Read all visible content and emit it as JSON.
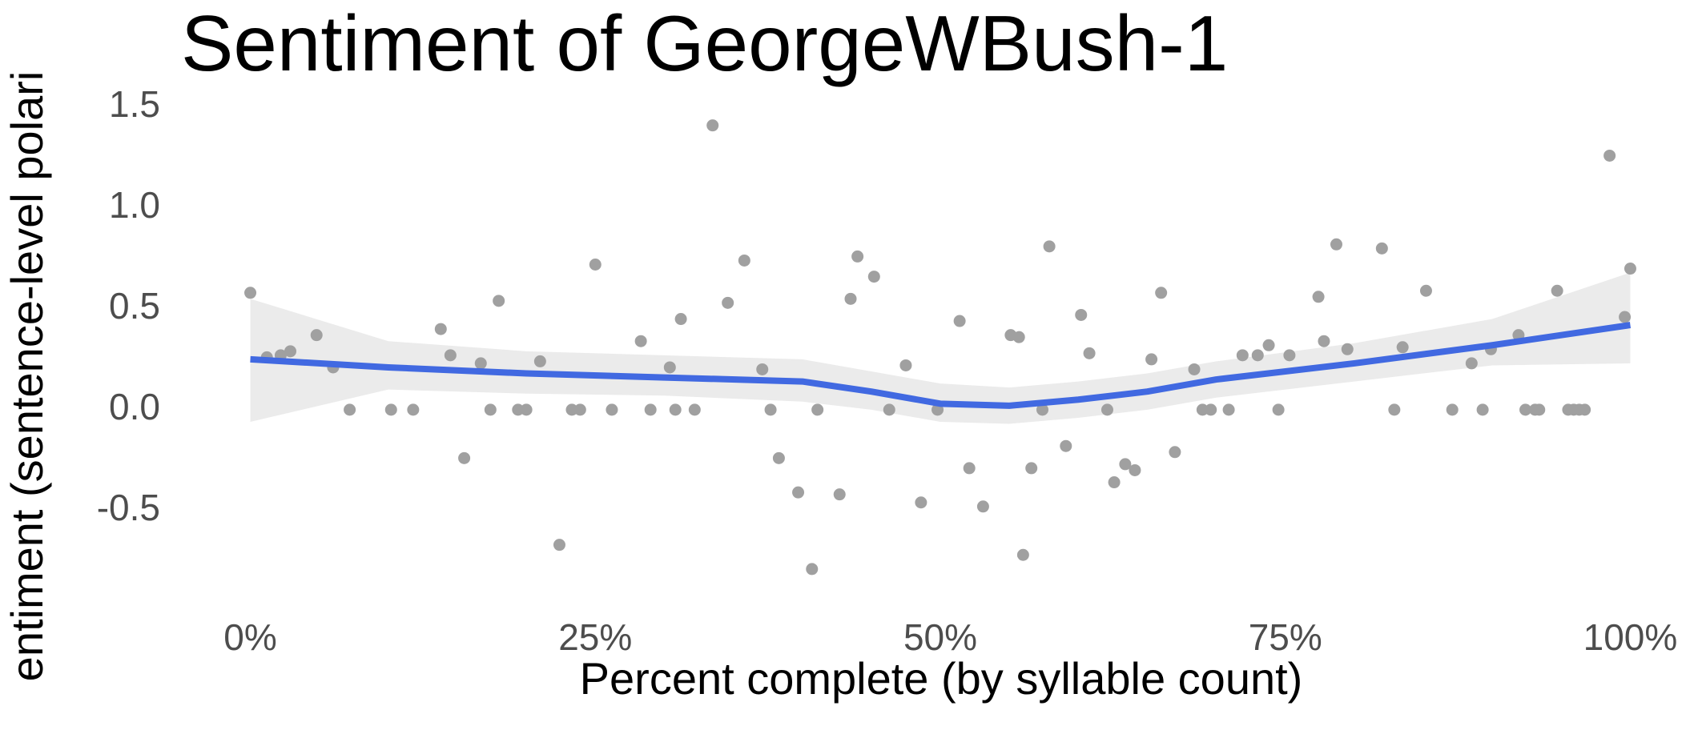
{
  "chart_data": {
    "type": "scatter",
    "title": "Sentiment of GeorgeWBush-1",
    "x_label": "Percent complete (by syllable count)",
    "y_label": "entiment (sentence-level polari",
    "xlim": [
      -4.5,
      104.5
    ],
    "ylim": [
      -0.85,
      1.5
    ],
    "xticks": [
      {
        "value": 0,
        "label": "0%"
      },
      {
        "value": 25,
        "label": "25%"
      },
      {
        "value": 50,
        "label": "50%"
      },
      {
        "value": 75,
        "label": "75%"
      },
      {
        "value": 100,
        "label": "100%"
      }
    ],
    "yticks": [
      -0.5,
      {
        "value": 0,
        "label": "0.0"
      },
      0.5,
      {
        "value": 1,
        "label": "1.0"
      },
      1.5
    ],
    "grid": false,
    "points": {
      "color": "#a0a0a0",
      "x": [
        0,
        1.2,
        2.2,
        2.9,
        4.8,
        6.0,
        7.2,
        10.2,
        11.8,
        13.8,
        14.5,
        15.5,
        16.7,
        17.4,
        18.0,
        19.4,
        20.0,
        21.0,
        22.4,
        23.3,
        23.9,
        25.0,
        26.2,
        28.3,
        29.0,
        30.4,
        30.8,
        31.2,
        32.2,
        33.5,
        34.6,
        35.8,
        37.1,
        37.7,
        38.3,
        39.7,
        40.7,
        41.1,
        42.7,
        43.5,
        44.0,
        45.2,
        46.3,
        47.5,
        48.6,
        49.8,
        51.4,
        52.1,
        53.1,
        55.1,
        55.7,
        56.0,
        56.6,
        57.4,
        57.9,
        59.1,
        60.2,
        60.8,
        62.1,
        62.6,
        63.4,
        64.1,
        65.3,
        66.0,
        67.0,
        68.4,
        69.0,
        69.6,
        70.9,
        71.9,
        73.0,
        73.8,
        74.5,
        75.3,
        77.4,
        77.8,
        78.7,
        79.5,
        82.0,
        82.9,
        83.5,
        85.2,
        87.1,
        88.5,
        89.3,
        89.9,
        91.9,
        92.4,
        93.1,
        93.4,
        94.7,
        95.5,
        95.9,
        96.3,
        96.7,
        98.5,
        99.6,
        100
      ],
      "values": [
        0.58,
        0.26,
        0.27,
        0.29,
        0.37,
        0.21,
        0,
        0,
        0,
        0.4,
        0.27,
        -0.24,
        0.23,
        0,
        0.54,
        0,
        0,
        0.24,
        -0.67,
        0,
        0,
        0.72,
        0,
        0.34,
        0,
        0.21,
        0,
        0.45,
        0,
        1.41,
        0.53,
        0.74,
        0.2,
        0,
        -0.24,
        -0.41,
        -0.79,
        0,
        -0.42,
        0.55,
        0.76,
        0.66,
        0,
        0.22,
        -0.46,
        0,
        0.44,
        -0.29,
        -0.48,
        0.37,
        0.36,
        -0.72,
        -0.29,
        0,
        0.81,
        -0.18,
        0.47,
        0.28,
        0,
        -0.36,
        -0.27,
        -0.3,
        0.25,
        0.58,
        -0.21,
        0.2,
        0,
        0,
        0,
        0.27,
        0.27,
        0.32,
        0,
        0.27,
        0.56,
        0.34,
        0.82,
        0.3,
        0.8,
        0,
        0.31,
        0.59,
        0,
        0.23,
        0,
        0.3,
        0.37,
        0,
        0,
        0,
        0.59,
        0,
        0,
        0,
        0,
        1.26,
        0.46,
        0.7
      ]
    },
    "smooth": {
      "color": "#4169e1",
      "band_color": "#ebebeb",
      "x": [
        0,
        10,
        20,
        30,
        40,
        45,
        50,
        55,
        60,
        65,
        70,
        80,
        90,
        100
      ],
      "values": [
        0.25,
        0.21,
        0.18,
        0.16,
        0.14,
        0.09,
        0.03,
        0.02,
        0.05,
        0.09,
        0.15,
        0.23,
        0.32,
        0.42
      ],
      "lower": [
        -0.06,
        0.1,
        0.08,
        0.07,
        0.04,
        0.0,
        -0.06,
        -0.07,
        -0.04,
        0.0,
        0.06,
        0.14,
        0.22,
        0.23
      ],
      "upper": [
        0.55,
        0.34,
        0.29,
        0.27,
        0.25,
        0.19,
        0.13,
        0.11,
        0.14,
        0.18,
        0.24,
        0.33,
        0.45,
        0.68
      ]
    }
  }
}
